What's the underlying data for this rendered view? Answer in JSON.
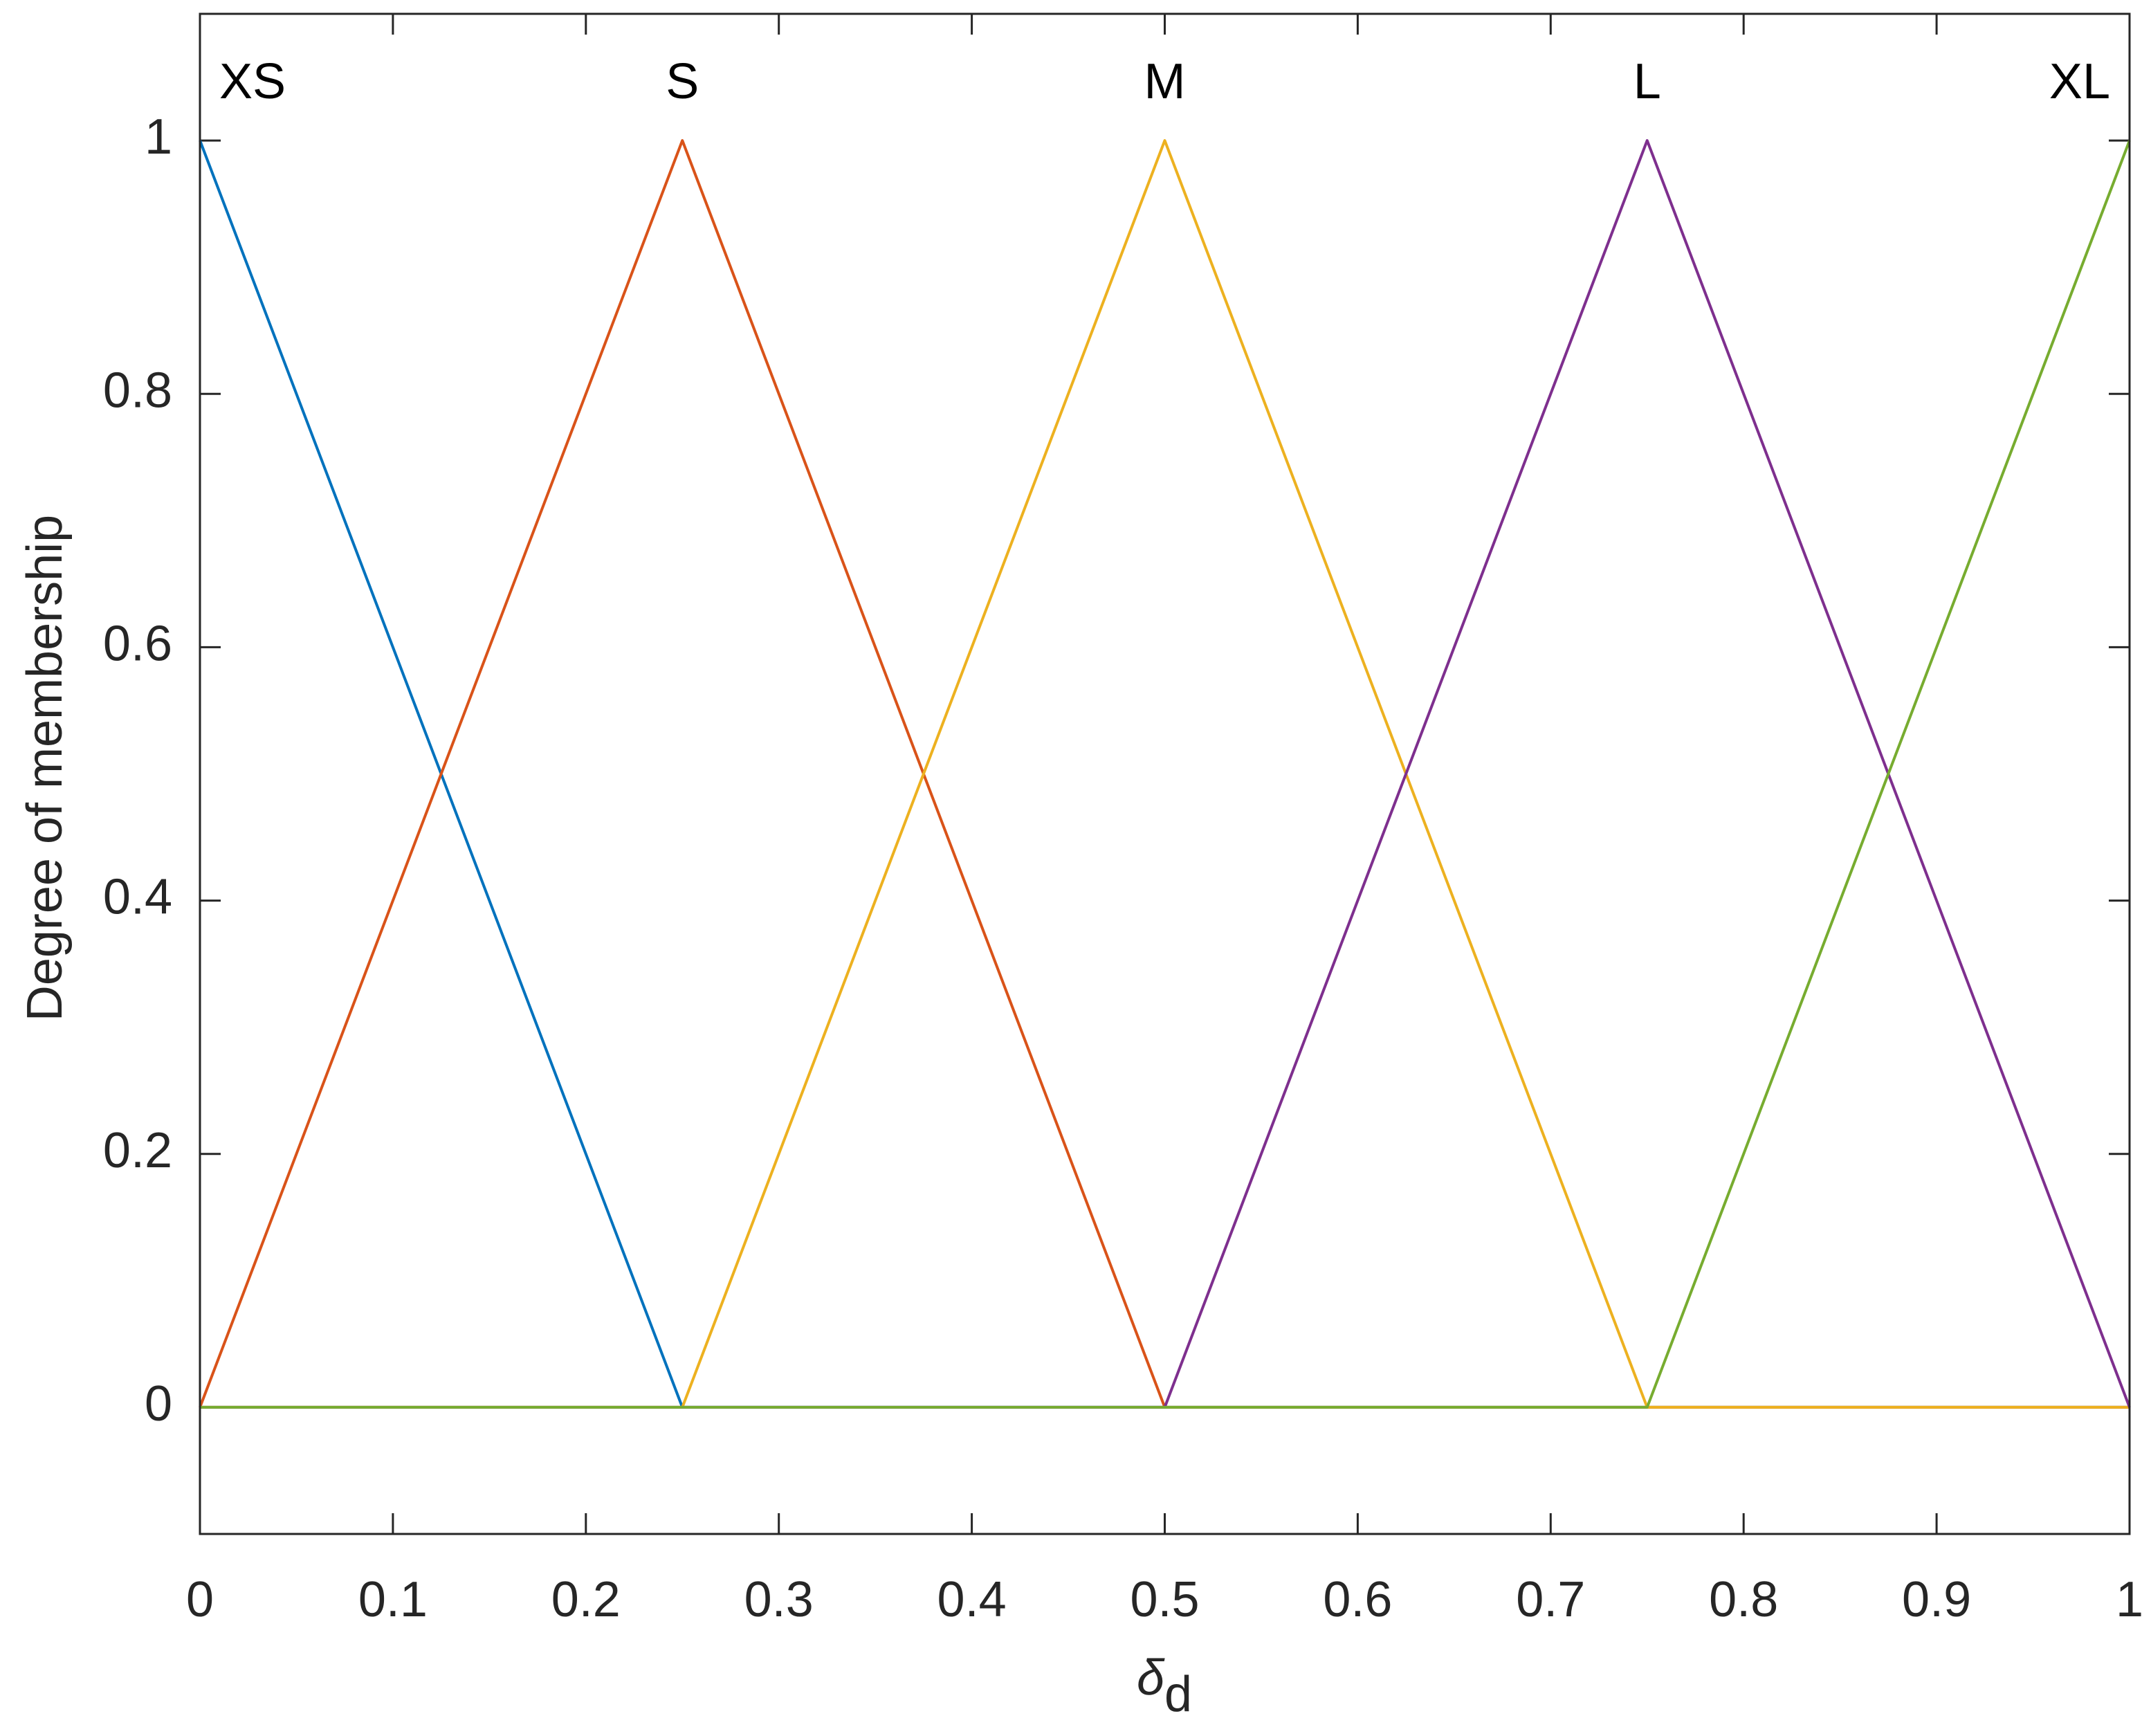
{
  "chart_data": {
    "type": "line",
    "xlabel": "δ",
    "xlabel_subscript": "d",
    "ylabel": "Degree of membership",
    "x": [
      0,
      0.25,
      0.5,
      0.75,
      1
    ],
    "series": [
      {
        "name": "XS",
        "color": "#0072BD",
        "values": [
          1,
          0,
          0,
          0,
          0
        ]
      },
      {
        "name": "S",
        "color": "#D95319",
        "values": [
          0,
          1,
          0,
          0,
          0
        ]
      },
      {
        "name": "M",
        "color": "#EDB120",
        "values": [
          0,
          0,
          1,
          0,
          0
        ]
      },
      {
        "name": "L",
        "color": "#7E2F8E",
        "values": [
          0,
          0,
          0,
          1,
          0
        ]
      },
      {
        "name": "XL",
        "color": "#77AC30",
        "values": [
          0,
          0,
          0,
          0,
          1
        ]
      }
    ],
    "xlim": [
      0,
      1
    ],
    "xticks": [
      0,
      0.1,
      0.2,
      0.3,
      0.4,
      0.5,
      0.6,
      0.7,
      0.8,
      0.9,
      1
    ],
    "ylim": [
      -0.1,
      1.1
    ],
    "yticks": [
      0,
      0.2,
      0.4,
      0.6,
      0.8,
      1
    ],
    "grid": false
  }
}
